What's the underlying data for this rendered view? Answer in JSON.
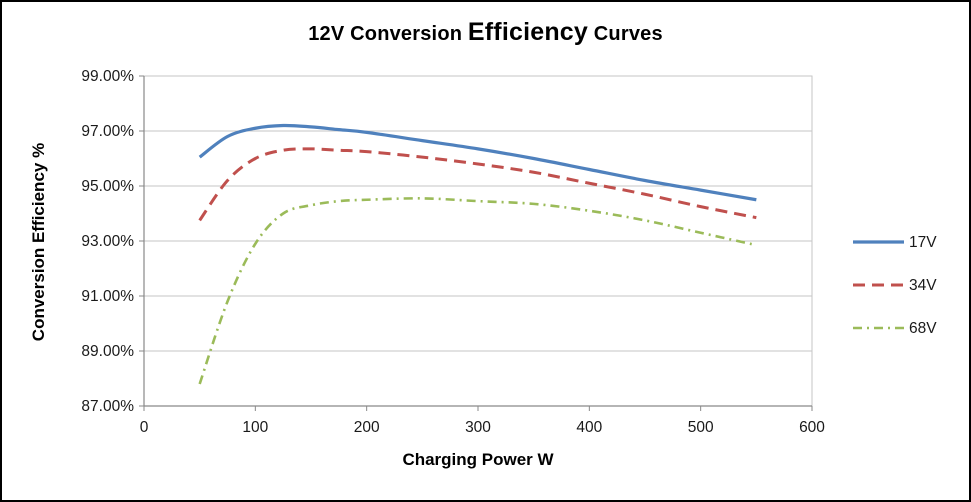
{
  "title": {
    "prefix": "12V Conversion ",
    "emphasis": "Efficiency",
    "suffix": " Curves"
  },
  "chart_data": {
    "type": "line",
    "title": "12V Conversion Efficiency Curves",
    "xlabel": "Charging Power W",
    "ylabel": "Conversion Efficiency %",
    "xlim": [
      0,
      600
    ],
    "ylim": [
      87,
      99
    ],
    "grid": true,
    "legend_position": "right",
    "x_ticks": [
      0,
      100,
      200,
      300,
      400,
      500,
      600
    ],
    "x_tick_labels": [
      "0",
      "100",
      "200",
      "300",
      "400",
      "500",
      "600"
    ],
    "y_ticks": [
      87,
      89,
      91,
      93,
      95,
      97,
      99
    ],
    "y_tick_labels": [
      "87.00%",
      "89.00%",
      "91.00%",
      "93.00%",
      "95.00%",
      "97.00%",
      "99.00%"
    ],
    "colors": {
      "gridline": "#c6c6c6",
      "axis": "#898989",
      "plot_border": "#c6c6c6"
    },
    "x": [
      50,
      75,
      100,
      125,
      150,
      175,
      200,
      250,
      300,
      350,
      400,
      450,
      500,
      550
    ],
    "series": [
      {
        "name": "17V",
        "color": "#4f81bd",
        "dash": "solid",
        "width": 3.2,
        "values": [
          96.05,
          96.8,
          97.1,
          97.2,
          97.15,
          97.05,
          96.95,
          96.65,
          96.35,
          96.0,
          95.6,
          95.2,
          94.85,
          94.5
        ]
      },
      {
        "name": "34V",
        "color": "#c0504d",
        "dash": "dash",
        "width": 3.0,
        "values": [
          93.75,
          95.2,
          96.0,
          96.3,
          96.35,
          96.3,
          96.25,
          96.05,
          95.8,
          95.5,
          95.1,
          94.7,
          94.25,
          93.85
        ]
      },
      {
        "name": "68V",
        "color": "#9bbb59",
        "dash": "dashdot",
        "width": 2.6,
        "values": [
          87.8,
          90.8,
          92.9,
          94.0,
          94.3,
          94.45,
          94.5,
          94.55,
          94.45,
          94.35,
          94.1,
          93.75,
          93.3,
          92.85
        ]
      }
    ]
  }
}
